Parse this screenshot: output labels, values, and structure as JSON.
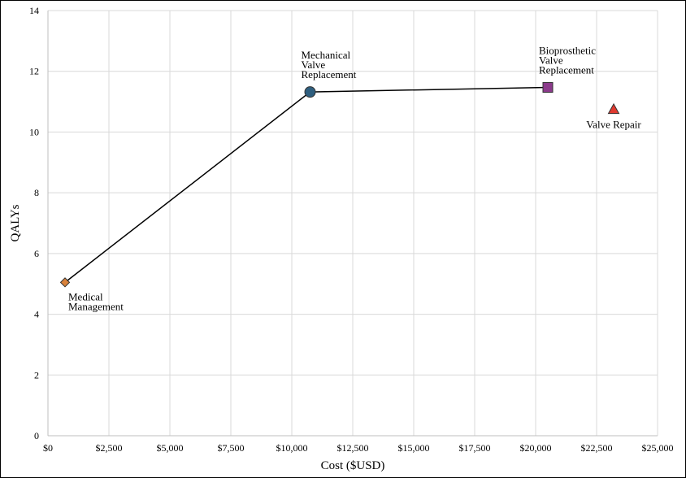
{
  "chart_data": {
    "type": "scatter",
    "title": "",
    "xlabel": "Cost ($USD)",
    "ylabel": "QALYs",
    "xlim": [
      0,
      25000
    ],
    "ylim": [
      0,
      14
    ],
    "grid": true,
    "x_tick_labels": [
      "$0",
      "$2,500",
      "$5,000",
      "$7,500",
      "$10,000",
      "$12,500",
      "$15,000",
      "$17,500",
      "$20,000",
      "$22,500",
      "$25,000"
    ],
    "y_tick_labels": [
      "0",
      "2",
      "4",
      "6",
      "8",
      "10",
      "12",
      "14"
    ],
    "points": [
      {
        "label": [
          "Medical",
          "Management"
        ],
        "x": 700,
        "y": 5.05,
        "marker": "diamond",
        "color": "#d9823b",
        "on_frontier": true
      },
      {
        "label": [
          "Mechanical",
          "Valve",
          "Replacement"
        ],
        "x": 10750,
        "y": 11.32,
        "marker": "circle",
        "color": "#2f5f7f",
        "on_frontier": true
      },
      {
        "label": [
          "Bioprosthetic",
          "Valve",
          "Replacement"
        ],
        "x": 20500,
        "y": 11.47,
        "marker": "square",
        "color": "#8b3a8b",
        "on_frontier": true
      },
      {
        "label": [
          "Valve Repair"
        ],
        "x": 23200,
        "y": 10.75,
        "marker": "triangle",
        "color": "#e03a2f",
        "on_frontier": false
      }
    ],
    "frontier_line_color": "#000000"
  }
}
